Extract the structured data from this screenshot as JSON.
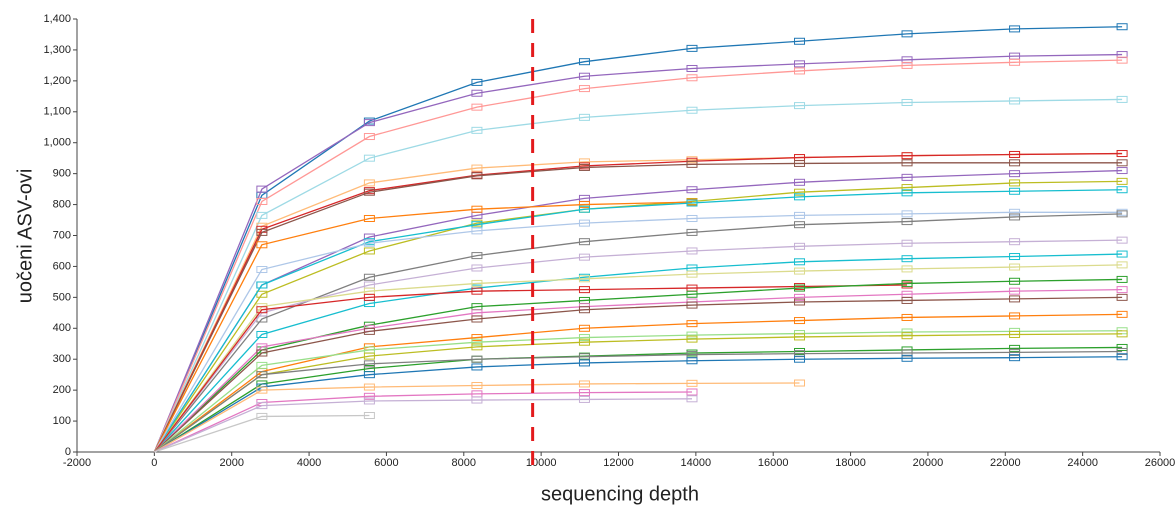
{
  "chart_data": {
    "type": "line",
    "x_label": "sequencing depth",
    "y_label": "uočeni ASV-ovi",
    "x": [
      0,
      2780,
      5560,
      8340,
      11120,
      13900,
      16680,
      19460,
      22240,
      25020
    ],
    "xlim": [
      -2000,
      26000
    ],
    "xticks": [
      -2000,
      0,
      2000,
      4000,
      6000,
      8000,
      10000,
      12000,
      14000,
      16000,
      18000,
      20000,
      22000,
      24000,
      26000
    ],
    "ylim": [
      0,
      1400
    ],
    "yticks": [
      0,
      100,
      200,
      300,
      400,
      500,
      600,
      700,
      800,
      900,
      {
        "value": 1000,
        "label": "1,000"
      },
      {
        "value": 1100,
        "label": "1,100"
      },
      {
        "value": 1200,
        "label": "1,200"
      },
      {
        "value": 1300,
        "label": "1,300"
      },
      {
        "value": 1400,
        "label": "1,400"
      }
    ],
    "reference_line": {
      "x": 9780,
      "color": "#e31a1c"
    },
    "series": [
      {
        "color": "#1f77b4",
        "values": [
          0,
          830,
          1070,
          1195,
          1262,
          1305,
          1328,
          1352,
          1368,
          1375
        ]
      },
      {
        "color": "#9467bd",
        "values": [
          0,
          850,
          1065,
          1160,
          1215,
          1240,
          1255,
          1268,
          1280,
          1285
        ]
      },
      {
        "color": "#ff9896",
        "values": [
          0,
          810,
          1020,
          1115,
          1175,
          1210,
          1232,
          1250,
          1260,
          1267
        ]
      },
      {
        "color": "#9edae5",
        "values": [
          0,
          765,
          950,
          1040,
          1082,
          1105,
          1120,
          1130,
          1135,
          1140
        ]
      },
      {
        "color": "#ffbb78",
        "values": [
          0,
          730,
          870,
          918,
          938,
          945,
          952,
          958,
          962,
          965
        ]
      },
      {
        "color": "#d62728",
        "values": [
          0,
          720,
          845,
          895,
          925,
          940,
          952,
          958,
          962,
          965
        ]
      },
      {
        "color": "#8c564b",
        "values": [
          0,
          710,
          840,
          893,
          920,
          930,
          933,
          935,
          935,
          935
        ]
      },
      {
        "color": "#9467bd",
        "values": [
          0,
          540,
          695,
          765,
          820,
          848,
          872,
          888,
          900,
          910
        ]
      },
      {
        "color": "#bcbd22",
        "values": [
          0,
          510,
          650,
          740,
          785,
          810,
          840,
          855,
          870,
          875
        ]
      },
      {
        "color": "#ff7f0e",
        "values": [
          0,
          670,
          755,
          785,
          800,
          808,
          null,
          null,
          null,
          null
        ]
      },
      {
        "color": "#17becf",
        "values": [
          0,
          540,
          680,
          735,
          785,
          805,
          825,
          838,
          843,
          848
        ]
      },
      {
        "color": "#aec7e8",
        "values": [
          0,
          590,
          675,
          715,
          740,
          755,
          765,
          770,
          775,
          775
        ]
      },
      {
        "color": "#7f7f7f",
        "values": [
          0,
          430,
          565,
          635,
          680,
          710,
          735,
          745,
          760,
          770
        ]
      },
      {
        "color": "#c5b0d5",
        "values": [
          0,
          450,
          540,
          595,
          630,
          650,
          665,
          675,
          680,
          685
        ]
      },
      {
        "color": "#17becf",
        "values": [
          0,
          380,
          480,
          530,
          565,
          595,
          615,
          625,
          632,
          640
        ]
      },
      {
        "color": "#dbdb8d",
        "values": [
          0,
          470,
          520,
          545,
          560,
          575,
          585,
          592,
          598,
          605
        ]
      },
      {
        "color": "#d62728",
        "values": [
          0,
          460,
          500,
          520,
          525,
          530,
          535,
          540,
          null,
          null
        ]
      },
      {
        "color": "#2ca02c",
        "values": [
          0,
          330,
          410,
          470,
          490,
          510,
          530,
          545,
          552,
          558
        ]
      },
      {
        "color": "#e377c2",
        "values": [
          0,
          340,
          400,
          450,
          470,
          485,
          500,
          510,
          520,
          525
        ]
      },
      {
        "color": "#8c564b",
        "values": [
          0,
          320,
          390,
          430,
          460,
          475,
          485,
          490,
          495,
          500
        ]
      },
      {
        "color": "#ff7f0e",
        "values": [
          0,
          260,
          340,
          370,
          400,
          415,
          425,
          435,
          440,
          445
        ]
      },
      {
        "color": "#98df8a",
        "values": [
          0,
          280,
          330,
          355,
          370,
          378,
          383,
          388,
          390,
          392
        ]
      },
      {
        "color": "#bcbd22",
        "values": [
          0,
          250,
          310,
          340,
          355,
          365,
          372,
          376,
          380,
          382
        ]
      },
      {
        "color": "#2ca02c",
        "values": [
          0,
          220,
          270,
          300,
          310,
          320,
          325,
          330,
          335,
          338
        ]
      },
      {
        "color": "#7f7f7f",
        "values": [
          0,
          250,
          285,
          300,
          308,
          315,
          318,
          320,
          322,
          325
        ]
      },
      {
        "color": "#1f77b4",
        "values": [
          0,
          210,
          250,
          275,
          288,
          295,
          300,
          303,
          305,
          308
        ]
      },
      {
        "color": "#ffbb78",
        "values": [
          0,
          200,
          210,
          215,
          220,
          222,
          223,
          null,
          null,
          null
        ]
      },
      {
        "color": "#e377c2",
        "values": [
          0,
          160,
          180,
          188,
          192,
          194,
          null,
          null,
          null,
          null
        ]
      },
      {
        "color": "#c5b0d5",
        "values": [
          0,
          150,
          165,
          168,
          170,
          172,
          null,
          null,
          null,
          null
        ]
      },
      {
        "color": "#c7c7c7",
        "values": [
          0,
          115,
          118,
          null,
          null,
          null,
          null,
          null,
          null,
          null
        ]
      }
    ]
  }
}
